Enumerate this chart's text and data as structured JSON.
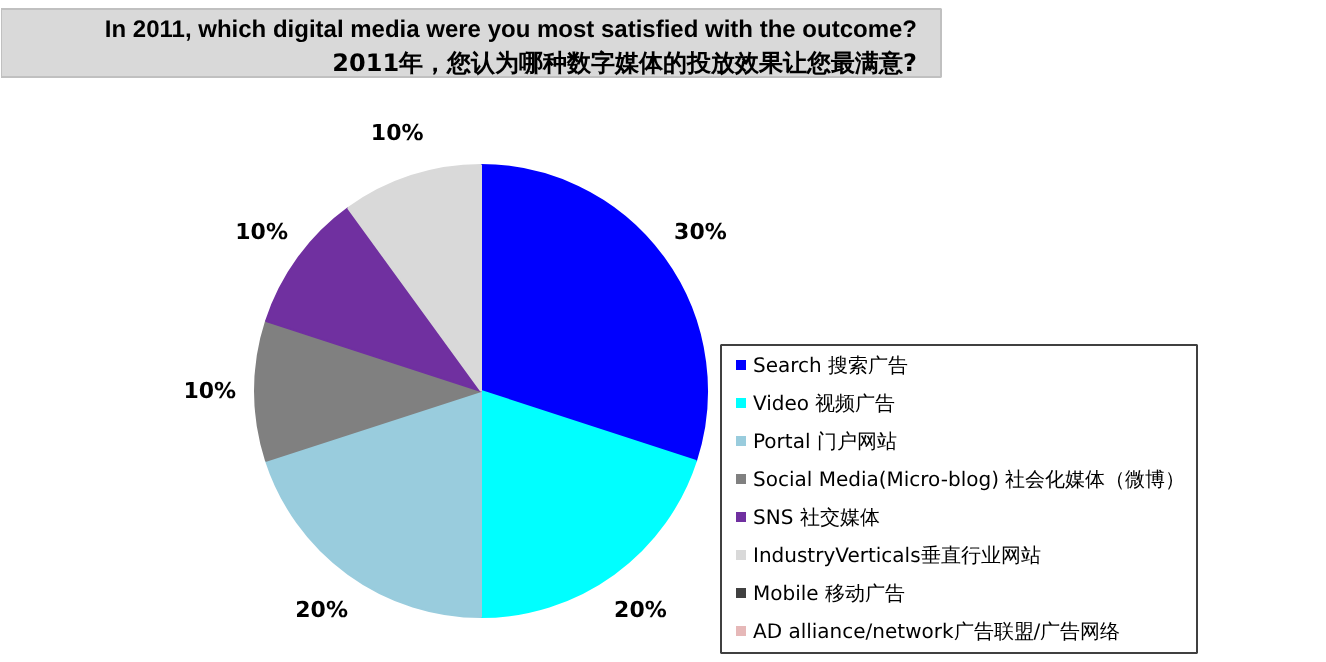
{
  "chart_data": {
    "type": "pie",
    "title": "In 2011, which digital media were you most satisfied with the outcome?",
    "subtitle": "2011年，您认为哪种数字媒体的投放效果让您最满意?",
    "categories": [
      "Search 搜索广告",
      "Video 视频广告",
      "Portal 门户网站",
      "Social Media(Micro-blog) 社会化媒体（微博）",
      "SNS 社交媒体",
      "IndustryVerticals垂直行业网站",
      "Mobile 移动广告",
      "AD alliance/network广告联盟/广告网络"
    ],
    "values": [
      30,
      20,
      20,
      10,
      10,
      10,
      0,
      0
    ],
    "value_labels": [
      "30%",
      "20%",
      "20%",
      "10%",
      "10%",
      "10%",
      null,
      null
    ],
    "colors": [
      "#0000ff",
      "#00ffff",
      "#99ccdd",
      "#808080",
      "#7030a0",
      "#d9d9d9",
      "#404040",
      "#e6b8b8"
    ],
    "legend": "right"
  }
}
